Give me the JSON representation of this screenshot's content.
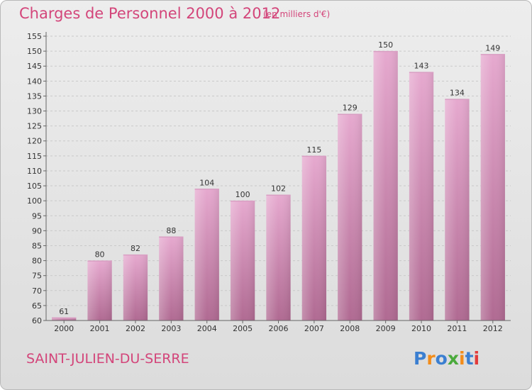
{
  "title": "Charges de Personnel 2000 à 2012",
  "subtitle": "(en milliers d'€)",
  "commune": "SAINT-JULIEN-DU-SERRE",
  "logo": {
    "letters": [
      "P",
      "r",
      "o",
      "x",
      "i",
      "t",
      "i"
    ],
    "colors": [
      "#3b7fd1",
      "#f28c1a",
      "#3b7fd1",
      "#4aaa3c",
      "#f28c1a",
      "#3b7fd1",
      "#e23b3b"
    ]
  },
  "chart_data": {
    "type": "bar",
    "categories": [
      "2000",
      "2001",
      "2002",
      "2003",
      "2004",
      "2005",
      "2006",
      "2007",
      "2008",
      "2009",
      "2010",
      "2011",
      "2012"
    ],
    "values": [
      61,
      80,
      82,
      88,
      104,
      100,
      102,
      115,
      129,
      150,
      143,
      134,
      149
    ],
    "value_labels": [
      "61",
      "80",
      "82",
      "88",
      "104",
      "100",
      "102",
      "115",
      "129",
      "150",
      "143",
      "134",
      "149"
    ],
    "ylim": [
      60,
      155
    ],
    "yticks": [
      "60",
      "65",
      "70",
      "75",
      "80",
      "85",
      "90",
      "95",
      "100",
      "105",
      "110",
      "115",
      "120",
      "125",
      "130",
      "135",
      "140",
      "145",
      "150",
      "155"
    ],
    "grid": true,
    "bar_color": "#c77fa9"
  }
}
